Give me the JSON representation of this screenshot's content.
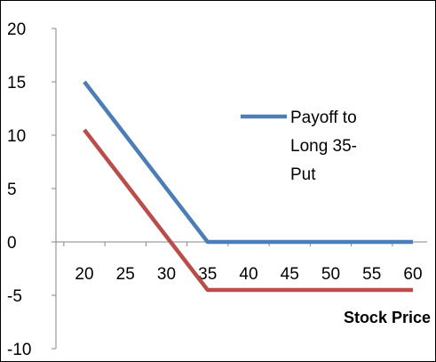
{
  "chart_data": {
    "type": "line",
    "title": "",
    "xlabel": "Stock Price",
    "ylabel": "",
    "x": [
      20,
      25,
      30,
      35,
      40,
      45,
      50,
      55,
      60
    ],
    "xticks": [
      "20",
      "25",
      "30",
      "35",
      "40",
      "45",
      "50",
      "55",
      "60"
    ],
    "yticks": [
      "20",
      "15",
      "10",
      "5",
      "0",
      "-5",
      "-10"
    ],
    "ylim": [
      -10,
      20
    ],
    "xlim": [
      20,
      60
    ],
    "grid": false,
    "legend_position": "top-right, inside plot",
    "series": [
      {
        "name": "Payoff to Long 35-Put",
        "color": "#4A7EBB",
        "values": [
          15,
          10,
          5,
          0,
          0,
          0,
          0,
          0,
          0
        ]
      },
      {
        "name": "",
        "color": "#BE4B48",
        "values": [
          10.5,
          5.5,
          0.5,
          -4.5,
          -4.5,
          -4.5,
          -4.5,
          -4.5,
          -4.5
        ]
      }
    ],
    "legend_lines": [
      "Payoff to",
      "Long 35-",
      "Put"
    ]
  }
}
